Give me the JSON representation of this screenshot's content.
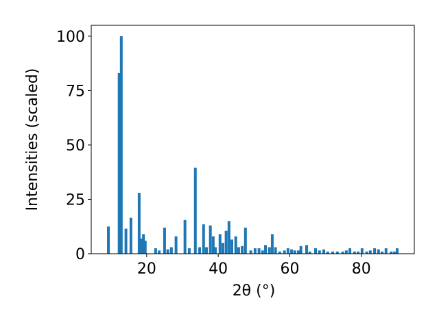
{
  "chart_data": {
    "type": "bar",
    "xlabel": "2θ (°)",
    "ylabel": "Intensities (scaled)",
    "color": "#1f77b4",
    "x": [
      9.3,
      12.3,
      12.9,
      14.2,
      15.6,
      17.9,
      18.5,
      19.1,
      19.6,
      22.5,
      23.5,
      25.0,
      25.9,
      26.9,
      28.2,
      30.7,
      31.9,
      33.6,
      34.8,
      35.9,
      36.7,
      37.8,
      38.6,
      39.2,
      40.5,
      41.3,
      42.2,
      43.0,
      43.8,
      44.9,
      45.7,
      46.7,
      47.6,
      49.1,
      50.3,
      51.4,
      52.4,
      53.2,
      54.3,
      55.1,
      56.0,
      57.2,
      58.5,
      59.5,
      60.5,
      61.4,
      62.4,
      63.1,
      64.7,
      65.6,
      67.2,
      68.3,
      69.5,
      70.6,
      72.0,
      73.3,
      74.8,
      75.8,
      76.8,
      78.1,
      79.1,
      80.2,
      81.5,
      82.5,
      83.7,
      84.8,
      85.8,
      86.9,
      88.3,
      89.2,
      90.0
    ],
    "values": [
      12.5,
      83,
      100,
      11.5,
      16.5,
      28,
      7,
      9,
      6,
      2.5,
      1.5,
      12,
      2,
      3,
      8,
      15.5,
      2.5,
      39.5,
      3,
      13.5,
      3,
      13,
      8,
      3,
      9,
      5,
      10.5,
      15,
      6.5,
      8,
      3,
      3.5,
      12,
      1.5,
      2.5,
      2.5,
      1.5,
      4,
      3,
      9,
      3,
      1,
      1.5,
      2.5,
      2,
      1.5,
      1.5,
      3.5,
      4,
      1,
      2.5,
      1.5,
      2,
      1,
      1,
      1,
      1,
      1.5,
      2.5,
      1,
      1,
      2.5,
      1,
      1.5,
      2.5,
      2,
      1,
      2.5,
      1,
      1,
      2.5
    ],
    "xlim": [
      4.5,
      94.8
    ],
    "ylim": [
      0,
      105
    ],
    "xticks": [
      20,
      40,
      60,
      80
    ],
    "yticks": [
      0,
      25,
      50,
      75,
      100
    ]
  }
}
